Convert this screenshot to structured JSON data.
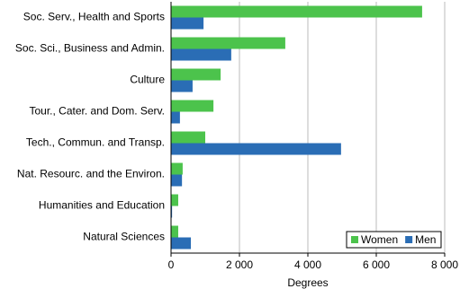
{
  "chart_data": {
    "type": "hbar",
    "categories": [
      "Soc. Serv., Health and Sports",
      "Soc. Sci., Business and Admin.",
      "Culture",
      "Tour., Cater. and Dom. Serv.",
      "Tech., Commun. and Transp.",
      "Nat. Resourc. and the Environ.",
      "Humanities and Education",
      "Natural Sciences"
    ],
    "series": [
      {
        "name": "Women",
        "color": "#4cc34c",
        "values": [
          7340,
          3340,
          1450,
          1240,
          1000,
          340,
          210,
          210
        ]
      },
      {
        "name": "Men",
        "color": "#2a6db5",
        "values": [
          950,
          1760,
          630,
          260,
          4970,
          320,
          30,
          580
        ]
      }
    ],
    "xlabel": "Degrees",
    "xlim": [
      0,
      8000
    ],
    "xticks": [
      0,
      {
        "value": 2000,
        "label": "2 000"
      },
      {
        "value": 4000,
        "label": "4 000"
      },
      {
        "value": 6000,
        "label": "6 000"
      },
      {
        "value": 8000,
        "label": "8 000"
      }
    ],
    "grid": true,
    "legend": "bottom-right"
  }
}
